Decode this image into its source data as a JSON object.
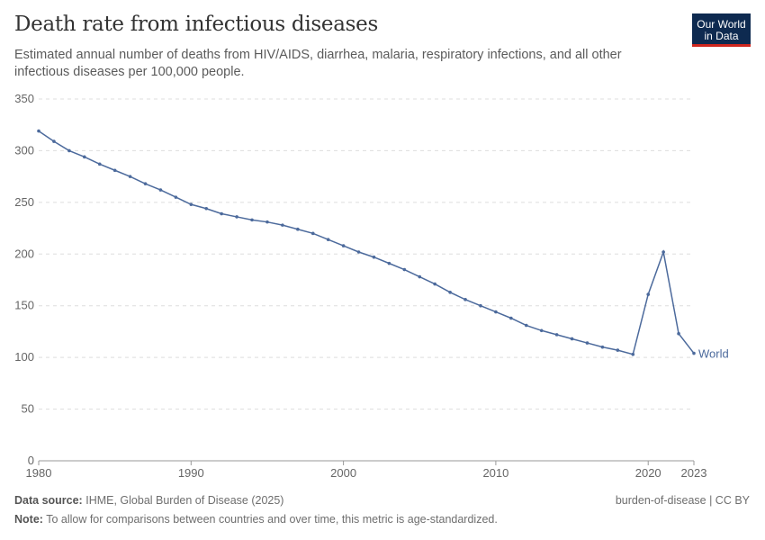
{
  "title": "Death rate from infectious diseases",
  "subtitle": "Estimated annual number of deaths from HIV/AIDS, diarrhea, malaria, respiratory infections, and all other infectious diseases per 100,000 people.",
  "logo": {
    "line1": "Our World",
    "line2": "in Data"
  },
  "footer": {
    "source_label": "Data source:",
    "source": "IHME, Global Burden of Disease (2025)",
    "note_label": "Note:",
    "note": "To allow for comparisons between countries and over time, this metric is age-standardized.",
    "license": "burden-of-disease | CC BY"
  },
  "chart_data": {
    "type": "line",
    "title": "Death rate from infectious diseases",
    "xlabel": "",
    "ylabel": "",
    "xlim": [
      1980,
      2023
    ],
    "ylim": [
      0,
      350
    ],
    "x_ticks": [
      "1980",
      "1990",
      "2000",
      "2010",
      "2020",
      "2023"
    ],
    "y_ticks": [
      "0",
      "50",
      "100",
      "150",
      "200",
      "250",
      "300",
      "350"
    ],
    "grid": "horizontal dashed",
    "series": [
      {
        "name": "World",
        "color": "#4c6a9c",
        "x": [
          1980,
          1981,
          1982,
          1983,
          1984,
          1985,
          1986,
          1987,
          1988,
          1989,
          1990,
          1991,
          1992,
          1993,
          1994,
          1995,
          1996,
          1997,
          1998,
          1999,
          2000,
          2001,
          2002,
          2003,
          2004,
          2005,
          2006,
          2007,
          2008,
          2009,
          2010,
          2011,
          2012,
          2013,
          2014,
          2015,
          2016,
          2017,
          2018,
          2019,
          2020,
          2021,
          2022,
          2023
        ],
        "y": [
          319,
          309,
          300,
          294,
          287,
          281,
          275,
          268,
          262,
          255,
          248,
          244,
          239,
          236,
          233,
          231,
          228,
          224,
          220,
          214,
          208,
          202,
          197,
          191,
          185,
          178,
          171,
          163,
          156,
          150,
          144,
          138,
          131,
          126,
          122,
          118,
          114,
          110,
          107,
          103,
          161,
          202,
          123,
          104
        ]
      }
    ]
  }
}
